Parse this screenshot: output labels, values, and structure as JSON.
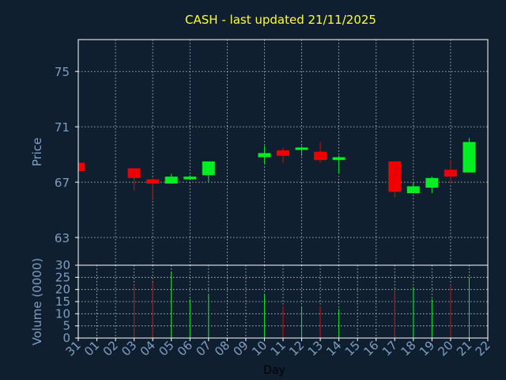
{
  "chart_data": {
    "type": "candlestick",
    "title": "CASH - last updated 21/11/2025",
    "colors": {
      "background": "#0f1f30",
      "title": "#ffff33",
      "axis_text": "#7f9fc0",
      "frame": "#ffffff",
      "grid": "#ffffff",
      "up": "#00ee22",
      "down": "#ee0000"
    },
    "grid": true,
    "x": {
      "label": "Day",
      "tick_labels": [
        "31",
        "01",
        "02",
        "03",
        "04",
        "05",
        "06",
        "07",
        "08",
        "09",
        "10",
        "11",
        "12",
        "13",
        "14",
        "15",
        "16",
        "17",
        "18",
        "19",
        "20",
        "21",
        "22"
      ]
    },
    "price_panel": {
      "ylabel": "Price",
      "ylim": [
        61,
        77.3
      ],
      "ticks": [
        63,
        67,
        71,
        75
      ]
    },
    "volume_panel": {
      "ylabel": "Volume (0000)",
      "ylim": [
        0,
        30
      ],
      "ticks": [
        0,
        5,
        10,
        15,
        20,
        25,
        30
      ]
    },
    "candles": [
      {
        "day": "31",
        "open": 68.4,
        "close": 67.8,
        "high": 68.5,
        "low": 67.7,
        "volume": null
      },
      {
        "day": "03",
        "open": 68.0,
        "close": 67.3,
        "high": 68.0,
        "low": 66.4,
        "volume": 22
      },
      {
        "day": "04",
        "open": 67.2,
        "close": 66.9,
        "high": 67.3,
        "low": 65.7,
        "volume": 23
      },
      {
        "day": "05",
        "open": 66.9,
        "close": 67.4,
        "high": 67.6,
        "low": 66.9,
        "volume": 27
      },
      {
        "day": "06",
        "open": 67.2,
        "close": 67.4,
        "high": 67.5,
        "low": 67.2,
        "volume": 16
      },
      {
        "day": "07",
        "open": 67.5,
        "close": 68.5,
        "high": 68.5,
        "low": 67.0,
        "volume": 18
      },
      {
        "day": "10",
        "open": 68.8,
        "close": 69.1,
        "high": 69.6,
        "low": 68.3,
        "volume": 18
      },
      {
        "day": "11",
        "open": 69.3,
        "close": 68.9,
        "high": 69.5,
        "low": 68.4,
        "volume": 13
      },
      {
        "day": "12",
        "open": 69.4,
        "close": 69.5,
        "high": 69.6,
        "low": 68.9,
        "volume": 13
      },
      {
        "day": "13",
        "open": 69.2,
        "close": 68.6,
        "high": 69.9,
        "low": 68.4,
        "volume": 13
      },
      {
        "day": "14",
        "open": 68.6,
        "close": 68.8,
        "high": 68.9,
        "low": 67.6,
        "volume": 12
      },
      {
        "day": "17",
        "open": 68.5,
        "close": 66.3,
        "high": 68.5,
        "low": 65.9,
        "volume": 20
      },
      {
        "day": "18",
        "open": 66.2,
        "close": 66.7,
        "high": 67.0,
        "low": 66.2,
        "volume": 21
      },
      {
        "day": "19",
        "open": 66.6,
        "close": 67.3,
        "high": 67.4,
        "low": 66.2,
        "volume": 16
      },
      {
        "day": "20",
        "open": 67.9,
        "close": 67.4,
        "high": 68.6,
        "low": 66.9,
        "volume": 22
      },
      {
        "day": "21",
        "open": 67.7,
        "close": 69.9,
        "high": 70.2,
        "low": 67.7,
        "volume": 25
      }
    ]
  }
}
